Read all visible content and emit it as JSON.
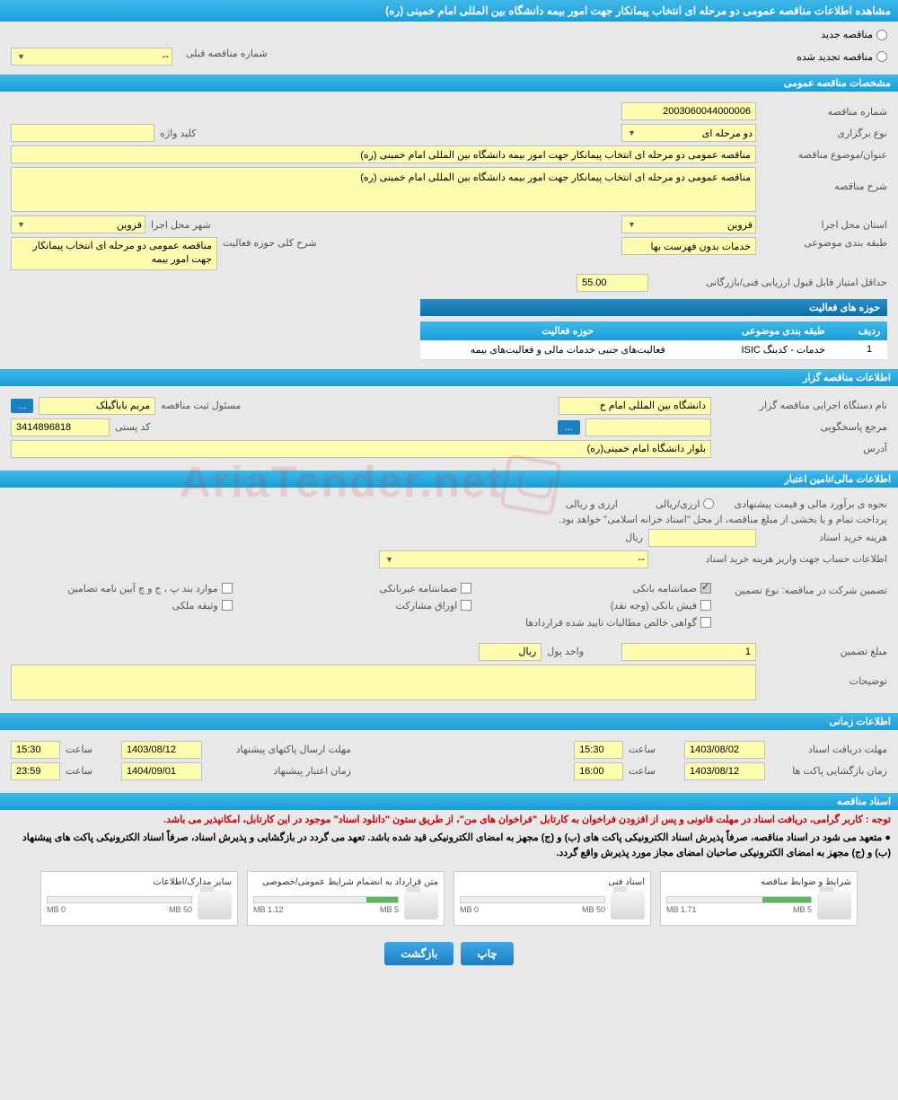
{
  "page_title": "مشاهده اطلاعات مناقصه عمومی دو مرحله ای انتخاب پیمانکار جهت امور بیمه دانشگاه بین المللی امام خمینی (ره)",
  "radio": {
    "new": "مناقصه جدید",
    "renewed": "مناقصه تجدید شده"
  },
  "prev_tender": {
    "label": "شماره مناقصه قبلی",
    "value": "--"
  },
  "sections": {
    "general": "مشخصات مناقصه عمومی",
    "tenderer": "اطلاعات مناقصه گزار",
    "financial": "اطلاعات مالی/تامین اعتبار",
    "timing": "اطلاعات زمانی",
    "docs": "اسناد مناقصه"
  },
  "general": {
    "number_label": "شماره مناقصه",
    "number": "2003060044000006",
    "type_label": "نوع برگزاری",
    "type": "دو مرحله ای",
    "keyword_label": "کلید واژه",
    "keyword": "",
    "title_label": "عنوان/موضوع مناقصه",
    "title": "مناقصه عمومی دو مرحله ای انتخاب پیمانکار جهت امور بیمه دانشگاه بین المللی امام خمینی (ره)",
    "desc_label": "شرح مناقصه",
    "desc": "مناقصه عمومی دو مرحله ای انتخاب پیمانکار جهت امور بیمه دانشگاه بین المللی امام خمینی (ره)",
    "province_label": "استان محل اجرا",
    "province": "قزوین",
    "city_label": "شهر محل اجرا",
    "city": "قزوین",
    "category_label": "طبقه بندی موضوعی",
    "category": "خدمات بدون فهرست بها",
    "activity_label": "شرح کلی حوزه فعالیت",
    "activity": "مناقصه عمومی دو مرحله ای انتخاب پیمانکار جهت امور بیمه",
    "minscore_label": "حداقل امتیاز قابل قبول ارزیابی فنی/بازرگانی",
    "minscore": "55.00"
  },
  "activity_table": {
    "title": "حوزه های فعالیت",
    "cols": [
      "ردیف",
      "طبقه بندی موضوعی",
      "حوزه فعالیت"
    ],
    "rows": [
      [
        "1",
        "خدمات - کدینگ ISIC",
        "فعالیت‌های جنبی خدمات مالی و فعالیت‌های بیمه"
      ]
    ]
  },
  "tenderer": {
    "org_label": "نام دستگاه اجرایی مناقصه گزار",
    "org": "دانشگاه بین المللی امام خ",
    "reg_label": "مسئول ثبت مناقصه",
    "reg": "مریم  باباگیلک",
    "ref_label": "مرجع پاسخگویی",
    "ref": "",
    "postal_label": "کد پستی",
    "postal": "3414896818",
    "address_label": "آدرس",
    "address": "بلوار دانشگاه امام خمینی(ره)",
    "btn": "..."
  },
  "financial": {
    "estimate_label": "نحوه ی برآورد مالی و قیمت پیشنهادی",
    "currency_label": "ارزی/ریالی",
    "currency": "ارزی و ریالی",
    "treasury_note": "پرداخت تمام و یا بخشی از مبلغ مناقصه، از محل \"اسناد خزانه اسلامی\" خواهد بود.",
    "fee_label": "هزینه خرید اسناد",
    "fee": "",
    "fee_unit": "ریال",
    "account_label": "اطلاعات حساب جهت واریز هزینه خرید اسناد",
    "account": "--",
    "guarantee_intro": "تضمین شرکت در مناقصه:   نوع تضمین",
    "guarantees": {
      "bank_guarantee": "ضمانتنامه بانکی",
      "nonbank_guarantee": "ضمانتنامه غیربانکی",
      "reg_cases": "موارد بند پ ، ج و چ آیین نامه تضامین",
      "bank_receipt": "فیش بانکی (وجه نقد)",
      "bonds": "اوراق مشارکت",
      "property": "وثیقه ملکی",
      "receivables": "گواهی خالص مطالبات تایید شده قراردادها"
    },
    "amount_label": "مبلغ تضمین",
    "amount": "1",
    "unit_label": "واحد پول",
    "unit": "ریال",
    "notes_label": "توضیحات"
  },
  "timing": {
    "receive_label": "مهلت دریافت اسناد",
    "receive_date": "1403/08/02",
    "receive_time_label": "ساعت",
    "receive_time": "15:30",
    "submit_label": "مهلت ارسال پاکتهای پیشنهاد",
    "submit_date": "1403/08/12",
    "submit_time": "15:30",
    "open_label": "زمان بازگشایی پاکت ها",
    "open_date": "1403/08/12",
    "open_time": "16:00",
    "validity_label": "زمان اعتبار پیشنهاد",
    "validity_date": "1404/09/01",
    "validity_time": "23:59"
  },
  "docs": {
    "notice_red": "توجه : کاربر گرامی، دریافت اسناد در مهلت قانونی و پس از افزودن فراخوان به کارتابل \"فراخوان های من\"، از طریق ستون \"دانلود اسناد\" موجود در این کارتابل، امکانپذیر می باشد.",
    "notice_black": "● متعهد می شود در اسناد مناقصه، صرفاً پذیرش اسناد الکترونیکی پاکت های (ب) و (ج) مجهز به امضای الکترونیکی قید شده باشد. تعهد می گردد در بازگشایی و پذیرش اسناد، صرفاً اسناد الکترونیکی پاکت های پیشنهاد (ب) و (ج) مجهز به امضای الکترونیکی صاحبان امضای مجاز مورد پذیرش واقع گردد.",
    "files": [
      {
        "title": "شرایط و ضوابط مناقصه",
        "used": "1.71 MB",
        "total": "5 MB",
        "pct": 34
      },
      {
        "title": "اسناد فنی",
        "used": "0 MB",
        "total": "50 MB",
        "pct": 0
      },
      {
        "title": "متن قرارداد به انضمام شرایط عمومی/خصوصی",
        "used": "1.12 MB",
        "total": "5 MB",
        "pct": 22
      },
      {
        "title": "سایر مدارک/اطلاعات",
        "used": "0 MB",
        "total": "50 MB",
        "pct": 0
      }
    ]
  },
  "buttons": {
    "print": "چاپ",
    "back": "بازگشت"
  },
  "watermark": "AriaTender.net",
  "colors": {
    "header": "#1a9ed8",
    "field": "#fffdb0",
    "bg": "#e8e8e8"
  }
}
